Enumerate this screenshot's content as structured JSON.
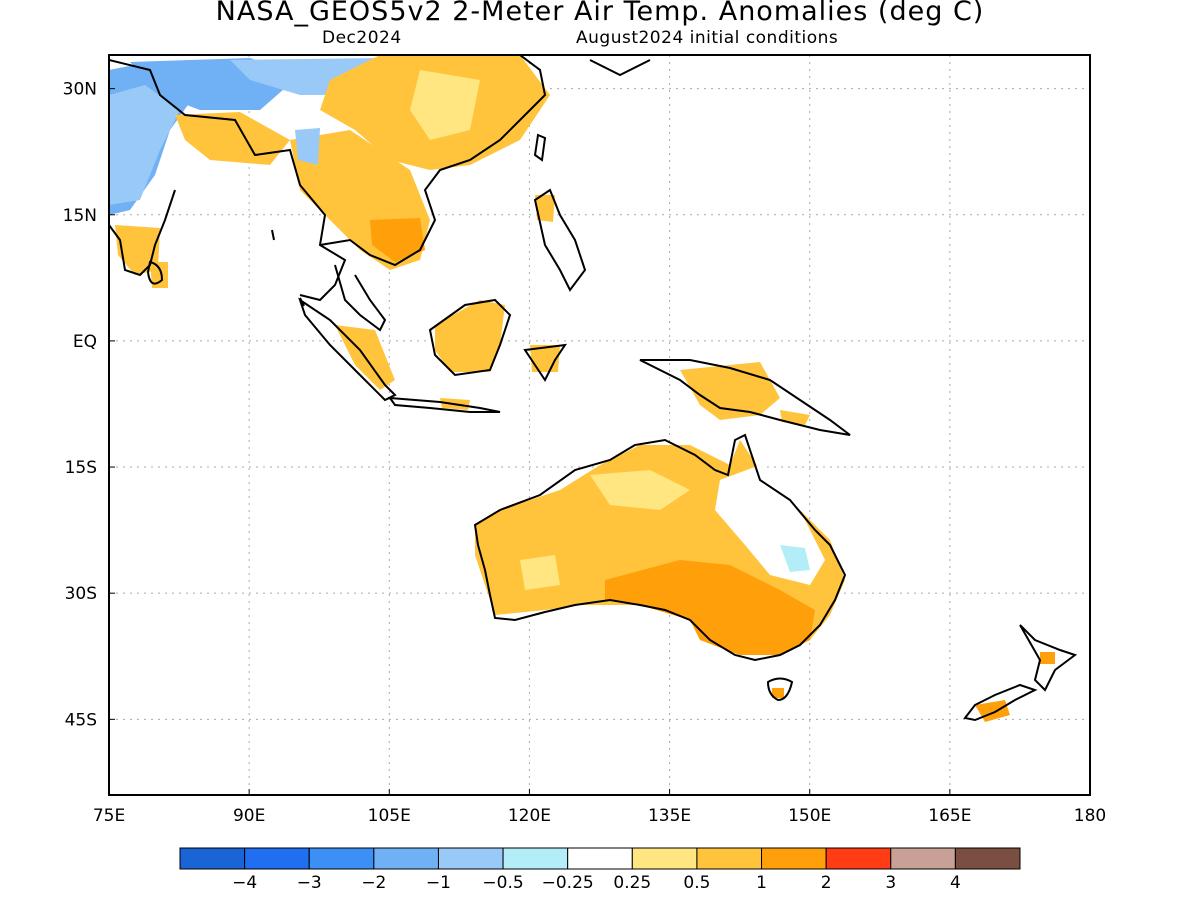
{
  "header": {
    "title": "NASA_GEOS5v2 2-Meter Air Temp. Anomalies (deg C)",
    "month": "Dec2024",
    "init": "August2024 initial conditions"
  },
  "map": {
    "lon_range": [
      75,
      180
    ],
    "lat_range": [
      -54,
      34
    ],
    "x_ticks": [
      {
        "value": 75,
        "label": "75E"
      },
      {
        "value": 90,
        "label": "90E"
      },
      {
        "value": 105,
        "label": "105E"
      },
      {
        "value": 120,
        "label": "120E"
      },
      {
        "value": 135,
        "label": "135E"
      },
      {
        "value": 150,
        "label": "150E"
      },
      {
        "value": 165,
        "label": "165E"
      },
      {
        "value": 180,
        "label": "180"
      }
    ],
    "y_ticks": [
      {
        "value": 30,
        "label": "30N"
      },
      {
        "value": 15,
        "label": "15N"
      },
      {
        "value": 0,
        "label": "EQ"
      },
      {
        "value": -15,
        "label": "15S"
      },
      {
        "value": -30,
        "label": "30S"
      },
      {
        "value": -45,
        "label": "45S"
      }
    ],
    "gridlines": "dotted"
  },
  "colorbar": {
    "colors": [
      "#1a64d6",
      "#1f6ff0",
      "#3c8ff5",
      "#70b0f5",
      "#98c9f7",
      "#b3eef8",
      "#ffffff",
      "#ffe680",
      "#ffc43c",
      "#ffa00a",
      "#ff3c14",
      "#c8a096",
      "#7a4f41"
    ],
    "labels": [
      "−4",
      "−3",
      "−2",
      "−1",
      "−0.5",
      "−0.25",
      "0.25",
      "0.5",
      "1",
      "2",
      "3",
      "4"
    ]
  }
}
